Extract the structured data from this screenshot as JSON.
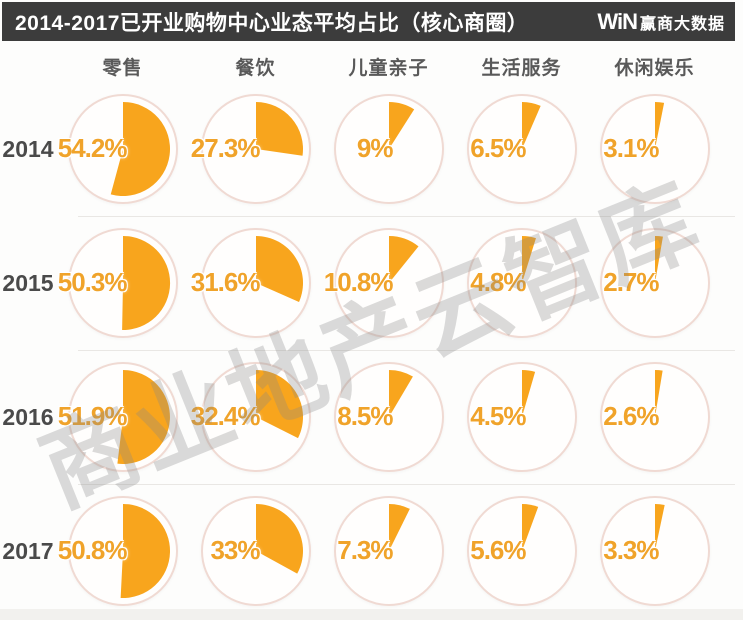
{
  "header": {
    "title": "2014-2017已开业购物中心业态平均占比（核心商圈）",
    "brand_win": "WiN",
    "brand_name": "赢商大数据"
  },
  "watermark": {
    "text": "商业地产云智库"
  },
  "chart_data": {
    "type": "pie",
    "title": "2014-2017已开业购物中心业态平均占比（核心商圈）",
    "description": "Grid of pie charts; each pie shows category share of opened shopping-mall tenant mix (core business districts), slice drawn clockwise from 12 o'clock",
    "categories": [
      "零售",
      "餐饮",
      "儿童亲子",
      "生活服务",
      "休闲娱乐"
    ],
    "rows": [
      {
        "year": "2014",
        "values": [
          54.2,
          27.3,
          9,
          6.5,
          3.1
        ],
        "labels": [
          "54.2%",
          "27.3%",
          "9%",
          "6.5%",
          "3.1%"
        ]
      },
      {
        "year": "2015",
        "values": [
          50.3,
          31.6,
          10.8,
          4.8,
          2.7
        ],
        "labels": [
          "50.3%",
          "31.6%",
          "10.8%",
          "4.8%",
          "2.7%"
        ]
      },
      {
        "year": "2016",
        "values": [
          51.9,
          32.4,
          8.5,
          4.5,
          2.6
        ],
        "labels": [
          "51.9%",
          "32.4%",
          "8.5%",
          "4.5%",
          "2.6%"
        ]
      },
      {
        "year": "2017",
        "values": [
          50.8,
          33,
          7.3,
          5.6,
          3.3
        ],
        "labels": [
          "50.8%",
          "33%",
          "7.3%",
          "5.6%",
          "3.3%"
        ]
      }
    ],
    "colors": {
      "slice": "#f8a51d",
      "ring": "#f0dad3",
      "value_label": "#f0a32a",
      "header_bg": "#3c3c3c",
      "watermark": "rgba(135,135,135,0.30)"
    },
    "layout": {
      "grid": "4 rows x 5 columns",
      "legend": "none",
      "value_label_position": "left-inside-circle"
    }
  }
}
